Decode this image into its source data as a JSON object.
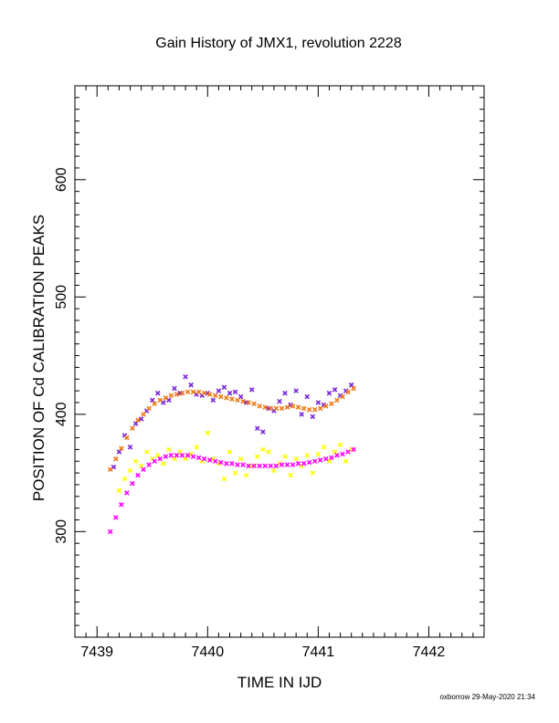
{
  "chart_data": {
    "type": "scatter",
    "title": "Gain History of JMX1, revolution 2228",
    "xlabel": "TIME IN IJD",
    "ylabel": "POSITION OF Cd CALIBRATION PEAKS",
    "xlim": [
      7438.8,
      7442.5
    ],
    "ylim": [
      210,
      680
    ],
    "x_ticks": [
      "7439",
      "7440",
      "7441",
      "7442"
    ],
    "y_ticks": [
      "300",
      "400",
      "500",
      "600"
    ],
    "grid": false,
    "series": [
      {
        "color": "#7722dd",
        "marker": "x",
        "x": [
          7439.15,
          7439.2,
          7439.25,
          7439.3,
          7439.35,
          7439.4,
          7439.45,
          7439.5,
          7439.55,
          7439.6,
          7439.65,
          7439.7,
          7439.75,
          7439.8,
          7439.85,
          7439.9,
          7439.95,
          7440.0,
          7440.05,
          7440.1,
          7440.15,
          7440.2,
          7440.25,
          7440.3,
          7440.35,
          7440.4,
          7440.45,
          7440.5,
          7440.55,
          7440.6,
          7440.65,
          7440.7,
          7440.75,
          7440.8,
          7440.85,
          7440.9,
          7440.95,
          7441.0,
          7441.05,
          7441.1,
          7441.15,
          7441.2,
          7441.25,
          7441.3
        ],
        "y": [
          355,
          368,
          382,
          372,
          392,
          396,
          403,
          412,
          418,
          410,
          412,
          422,
          418,
          432,
          425,
          417,
          416,
          418,
          412,
          420,
          423,
          418,
          419,
          415,
          410,
          421,
          388,
          385,
          405,
          403,
          411,
          418,
          408,
          420,
          400,
          415,
          398,
          410,
          408,
          418,
          421,
          416,
          420,
          425
        ]
      },
      {
        "color": "#ee7711",
        "marker": "x",
        "x": [
          7439.12,
          7439.17,
          7439.22,
          7439.27,
          7439.32,
          7439.37,
          7439.42,
          7439.47,
          7439.52,
          7439.57,
          7439.62,
          7439.67,
          7439.72,
          7439.77,
          7439.82,
          7439.87,
          7439.92,
          7439.97,
          7440.02,
          7440.07,
          7440.12,
          7440.17,
          7440.22,
          7440.27,
          7440.32,
          7440.37,
          7440.42,
          7440.47,
          7440.52,
          7440.57,
          7440.62,
          7440.67,
          7440.72,
          7440.77,
          7440.82,
          7440.87,
          7440.92,
          7440.97,
          7441.02,
          7441.07,
          7441.12,
          7441.17,
          7441.22,
          7441.27,
          7441.32
        ],
        "y": [
          353,
          362,
          371,
          380,
          388,
          395,
          400,
          405,
          409,
          412,
          414,
          416,
          417,
          418,
          419,
          419,
          419,
          418,
          417,
          416,
          415,
          414,
          413,
          412,
          411,
          410,
          409,
          407,
          406,
          405,
          405,
          405,
          406,
          407,
          406,
          405,
          404,
          404,
          405,
          407,
          409,
          412,
          415,
          419,
          422
        ]
      },
      {
        "color": "#ffff00",
        "marker": "x",
        "x": [
          7439.2,
          7439.25,
          7439.3,
          7439.35,
          7439.4,
          7439.45,
          7439.5,
          7439.55,
          7439.6,
          7439.65,
          7439.7,
          7439.75,
          7439.8,
          7439.85,
          7439.9,
          7439.95,
          7440.0,
          7440.05,
          7440.1,
          7440.15,
          7440.2,
          7440.25,
          7440.3,
          7440.35,
          7440.4,
          7440.45,
          7440.5,
          7440.55,
          7440.6,
          7440.65,
          7440.7,
          7440.75,
          7440.8,
          7440.85,
          7440.9,
          7440.95,
          7441.0,
          7441.05,
          7441.1,
          7441.15,
          7441.2,
          7441.25,
          7441.3
        ],
        "y": [
          335,
          345,
          352,
          360,
          356,
          368,
          362,
          365,
          358,
          370,
          362,
          368,
          362,
          366,
          372,
          360,
          384,
          362,
          358,
          345,
          368,
          350,
          362,
          348,
          356,
          364,
          370,
          368,
          352,
          358,
          364,
          348,
          362,
          356,
          365,
          350,
          366,
          372,
          360,
          368,
          374,
          360,
          370
        ]
      },
      {
        "color": "#ff00ff",
        "marker": "x",
        "x": [
          7439.12,
          7439.17,
          7439.22,
          7439.27,
          7439.32,
          7439.37,
          7439.42,
          7439.47,
          7439.52,
          7439.57,
          7439.62,
          7439.67,
          7439.72,
          7439.77,
          7439.82,
          7439.87,
          7439.92,
          7439.97,
          7440.02,
          7440.07,
          7440.12,
          7440.17,
          7440.22,
          7440.27,
          7440.32,
          7440.37,
          7440.42,
          7440.47,
          7440.52,
          7440.57,
          7440.62,
          7440.67,
          7440.72,
          7440.77,
          7440.82,
          7440.87,
          7440.92,
          7440.97,
          7441.02,
          7441.07,
          7441.12,
          7441.17,
          7441.22,
          7441.27,
          7441.32
        ],
        "y": [
          300,
          312,
          323,
          333,
          341,
          348,
          353,
          357,
          360,
          362,
          364,
          365,
          365,
          365,
          365,
          364,
          363,
          362,
          361,
          360,
          359,
          358,
          358,
          357,
          357,
          356,
          356,
          356,
          356,
          356,
          356,
          357,
          357,
          357,
          358,
          358,
          359,
          360,
          361,
          362,
          363,
          365,
          366,
          368,
          370
        ]
      }
    ]
  },
  "footer": "oxborrow 29-May-2020 21:34"
}
